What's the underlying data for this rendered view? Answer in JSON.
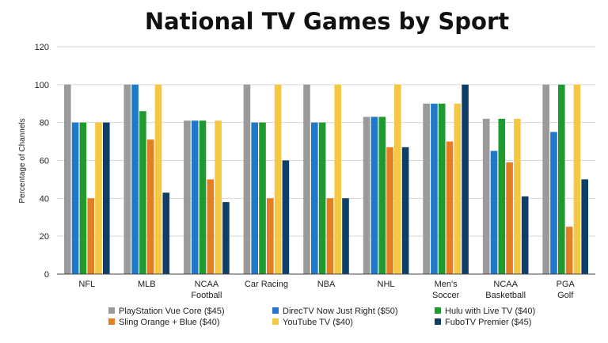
{
  "chart_data": {
    "type": "bar",
    "title": "National TV Games by Sport",
    "xlabel": "",
    "ylabel": "Percentage of Channels",
    "ylim": [
      0,
      120
    ],
    "yticks": [
      0,
      20,
      40,
      60,
      80,
      100,
      120
    ],
    "grid": true,
    "legend_position": "bottom",
    "categories": [
      [
        "NFL"
      ],
      [
        "MLB"
      ],
      [
        "NCAA",
        "Football"
      ],
      [
        "Car Racing"
      ],
      [
        "NBA"
      ],
      [
        "NHL"
      ],
      [
        "Men's",
        "Soccer"
      ],
      [
        "NCAA",
        "Basketball"
      ],
      [
        "PGA",
        "Golf"
      ]
    ],
    "series": [
      {
        "name": "PlayStation Vue Core ($45)",
        "color": "#9a9a9a",
        "values": [
          100,
          100,
          81,
          100,
          100,
          83,
          90,
          82,
          100
        ]
      },
      {
        "name": "DirecTV Now Just Right ($50)",
        "color": "#1f78c8",
        "values": [
          80,
          100,
          81,
          80,
          80,
          83,
          90,
          65,
          75
        ]
      },
      {
        "name": "Hulu with Live TV ($40)",
        "color": "#1e9a2e",
        "values": [
          80,
          86,
          81,
          80,
          80,
          83,
          90,
          82,
          100
        ]
      },
      {
        "name": "Sling Orange + Blue ($40)",
        "color": "#e37f22",
        "values": [
          40,
          71,
          50,
          40,
          40,
          67,
          70,
          59,
          25
        ]
      },
      {
        "name": "YouTube TV ($40)",
        "color": "#f4c842",
        "values": [
          80,
          100,
          81,
          100,
          100,
          100,
          90,
          82,
          100
        ]
      },
      {
        "name": "FuboTV Premier ($45)",
        "color": "#0f3f68",
        "values": [
          80,
          43,
          38,
          60,
          40,
          67,
          100,
          41,
          50
        ]
      }
    ]
  }
}
